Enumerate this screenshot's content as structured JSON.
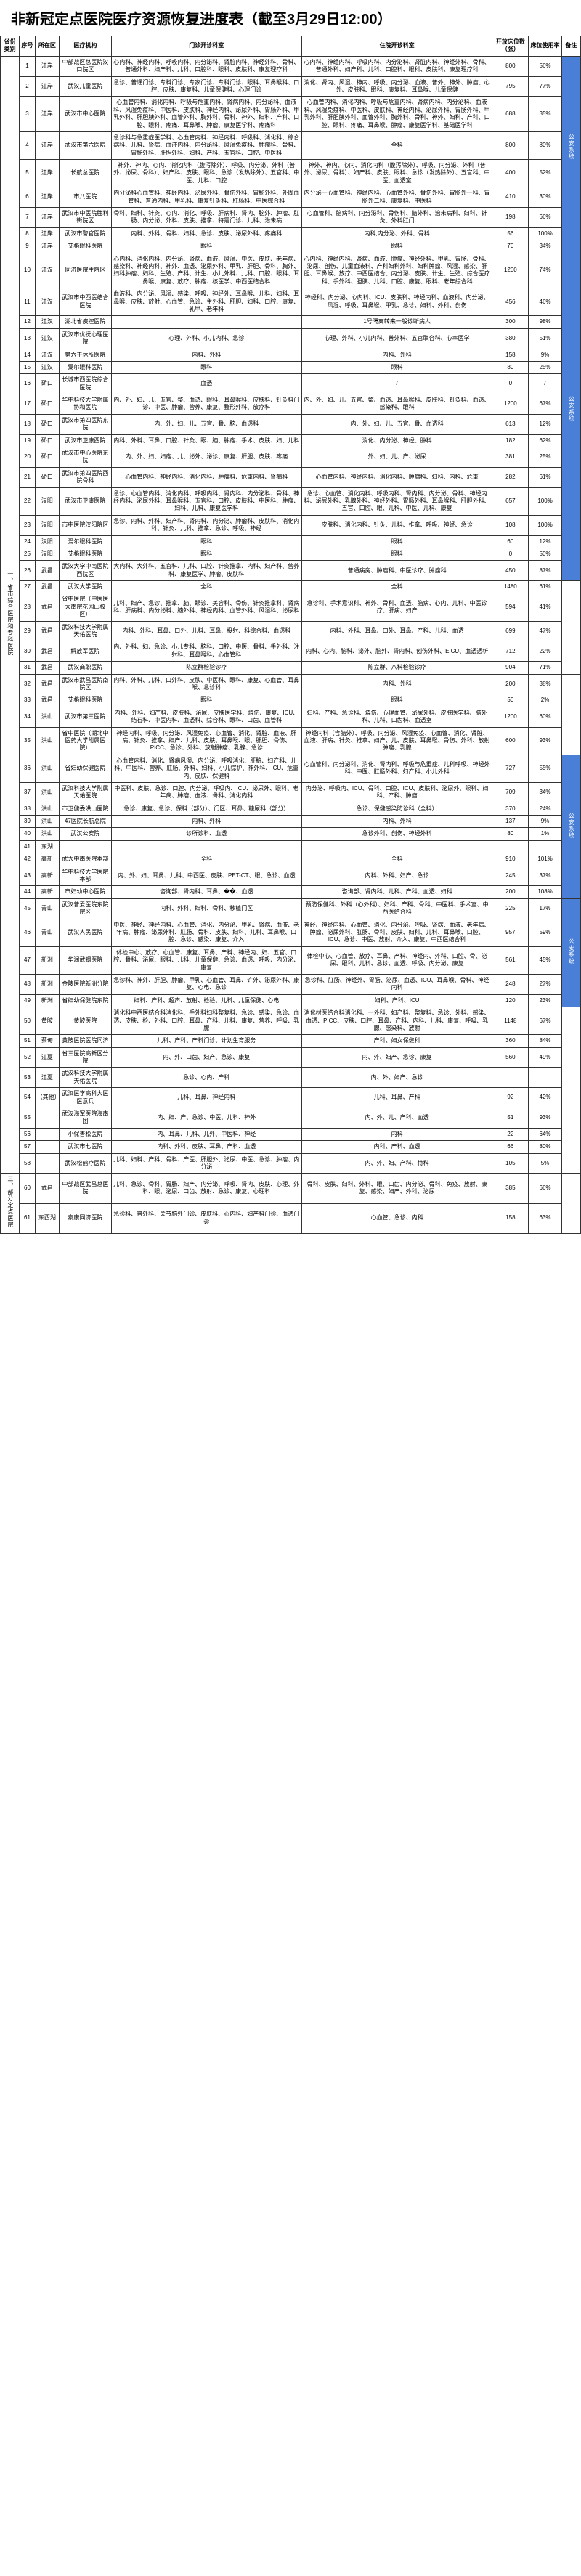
{
  "title": "非新冠定点医院医疗资源恢复进度表（截至3月29日12:00）",
  "headers": [
    "省份类别",
    "序号",
    "所在区",
    "医疗机构",
    "门诊开诊科室",
    "住院开诊科室",
    "开放床位数（张）",
    "床位使用率",
    "备注"
  ],
  "categories": [
    {
      "label": "一、省市综合医院和专科医院",
      "note_groups": [
        {
          "span": 8,
          "label": "公安系统"
        },
        {
          "span": 18,
          "label": "公安系统"
        },
        {
          "span": 5,
          "label": ""
        },
        {
          "span": 1,
          "label": ""
        },
        {
          "span": 3,
          "label": ""
        },
        {
          "span": 9,
          "label": "公安系统"
        },
        {
          "span": 5,
          "label": "公安系统"
        },
        {
          "span": 9,
          "label": ""
        }
      ],
      "rows": [
        {
          "seq": 1,
          "dist": "江岸",
          "hosp": "中部战区总医院汉口院区",
          "d1": "心内科、神经内科、呼吸内科、内分泌科、肾脏内科、神经外科、骨科、普通外科、妇产科、儿科、口腔科、眼科、皮肤科、康复理疗科",
          "d2": "心内科、神经内科、呼吸内科、内分泌科、肾脏内科、神经外科、骨科、普通外科、妇产科、儿科、口腔科、眼科、皮肤科、康复理疗科",
          "beds": "800",
          "rate": "56%"
        },
        {
          "seq": 2,
          "dist": "江岸",
          "hosp": "武汉儿童医院",
          "d1": "急诊、普通门诊、专科门诊、专家门诊、专科门诊、眼科、耳鼻喉科、口腔、皮肤、康复科、儿童保健科、心理门诊",
          "d2": "消化、肾内、风湿、神内、呼吸、内分泌、血液、普外、神外、肿瘤、心外、皮肤科、眼科、康复科、耳鼻喉、儿童保健",
          "beds": "795",
          "rate": "77%"
        },
        {
          "seq": 3,
          "dist": "江岸",
          "hosp": "武汉市中心医院",
          "d1": "心血管内科、消化内科、呼吸与危重内科、肾病内科、内分泌科、血液科、风湿免疫科、中医科、皮肤科、神经内科、泌尿外科、胃肠外科、甲乳外科、肝胆胰外科、血管外科、胸外科、骨科、神外、妇科、产科、口腔、眼科、疼痛、耳鼻喉、肿瘤、康复医学科、疼痛科",
          "d2": "心血管内科、消化内科、呼吸与危重内科、肾病内科、内分泌科、血液科、风湿免疫科、中医科、皮肤科、神经内科、泌尿外科、胃肠外科、甲乳外科、肝胆胰外科、血管外科、胸外科、骨科、神外、妇科、产科、口腔、眼科、疼痛、耳鼻喉、肿瘤、康复医学科、基础医学科",
          "beds": "688",
          "rate": "35%"
        },
        {
          "seq": 4,
          "dist": "江岸",
          "hosp": "武汉市第六医院",
          "d1": "急诊科与急重症医学科、心血管内科、神经内科、呼吸科、消化科、综合病科、儿科、肾病、血液内科、内分泌科、风湿免疫科、肿瘤科、骨科、胃肠外科、肝胆外科、妇科、产科、五官科、口腔、中医科",
          "d2": "全科",
          "beds": "800",
          "rate": "80%"
        },
        {
          "seq": 5,
          "dist": "江岸",
          "hosp": "长航总医院",
          "d1": "神外、神内、心内、消化内科（腹泻除外）、呼吸、内分泌、外科（普外、泌尿、骨科）、妇产科、皮肤、眼科、急诊（发热除外）、五官科、中医、儿科、口腔",
          "d2": "神外、神内、心内、消化内科（腹泻除外）、呼吸、内分泌、外科（普外、泌尿、骨科）、妇产科、皮肤、眼科、急诊（发热除外）、五官科、中医、血透室",
          "beds": "400",
          "rate": "52%"
        },
        {
          "seq": 6,
          "dist": "江岸",
          "hosp": "市八医院",
          "d1": "内分泌科心血管科、神经内科、泌尿外科、骨伤外科、胃肠外科、外周血管科、普通内科、甲乳科、康复针灸科、肛肠科、中医综合科",
          "d2": "内分泌一心血管科、神经内科、心血管外科、骨伤外科、胃肠外一科、胃肠外二科、康复科、中医科",
          "beds": "410",
          "rate": "30%"
        },
        {
          "seq": 7,
          "dist": "江岸",
          "hosp": "武汉市中医院胜利街院区",
          "d1": "骨科、妇科、针灸、心内、消化、呼吸、肝病科、肾内、脑外、肿瘤、肛肠、内分泌、外科、皮肤、推拿、特需门诊、儿科、治未病",
          "d2": "心血管科、脑病科、内分泌科、骨伤科、脑外科、治未病科、妇科、针灸、外科肛门",
          "beds": "198",
          "rate": "66%"
        },
        {
          "seq": 8,
          "dist": "江岸",
          "hosp": "武汉市警官医院",
          "d1": "内科、外科、骨科、妇科、急诊、皮肤、泌尿外科、疼痛科",
          "d2": "内科,内分泌、外科、骨科",
          "beds": "56",
          "rate": "100%"
        },
        {
          "seq": 9,
          "dist": "江岸",
          "hosp": "艾格眼科医院",
          "d1": "眼科",
          "d2": "眼科",
          "beds": "70",
          "rate": "34%"
        },
        {
          "seq": 10,
          "dist": "江汉",
          "hosp": "同济医院主院区",
          "d1": "心内科、消化内科、内分泌、肾病、血液、风湿、中医、皮肤、老年病、感染科、神经内科、神外、血透、泌尿外科、甲乳、肝胆、骨科、胸外、妇科肿瘤、妇科、生殖、产科、计生、小儿外科、儿科、口腔、眼科、耳鼻喉、康复、放疗、肿瘤、核医学、中西医结合科",
          "d2": "心内科、神经内科、肾病、血液、肿瘤、神经外科、甲乳、胃肠、骨科、泌尿、创伤、儿童血液科、产科妇科外科、妇科肿瘤、风湿、感染、肝胆、耳鼻喉、放疗、中西医结合、内分泌、皮肤、计生、生殖、综合医疗科、手外科、胆胰、儿科、口腔、康复、眼科、老年综合科",
          "beds": "1200",
          "rate": "74%"
        },
        {
          "seq": 11,
          "dist": "江汉",
          "hosp": "武汉市中西医结合医院",
          "d1": "血液科、内分泌、风湿、感染、呼吸、神经外、耳鼻喉、儿科、妇科、耳鼻喉、皮肤、放射、心血管、急诊、主外科、肝胆、妇科、口腔、康复、乳甲、老年科",
          "d2": "神经科、内分泌、心内科、ICU、皮肤科、神经内科、血液科、内分泌、风湿、呼吸、耳鼻喉、甲乳、急诊、妇科、外科、创伤",
          "beds": "456",
          "rate": "46%"
        },
        {
          "seq": 12,
          "dist": "江汉",
          "hosp": "湖北省疾控医院",
          "d1": "",
          "d2": "1号隔离转来一般诊断病人",
          "beds": "300",
          "rate": "98%"
        },
        {
          "seq": 13,
          "dist": "江汉",
          "hosp": "武汉市优抚心理医院",
          "d1": "心理、外科、小儿内科、急诊",
          "d2": "心理、外科、小儿内科、普外科、五官联合科、心率医学",
          "beds": "380",
          "rate": "51%"
        },
        {
          "seq": 14,
          "dist": "江汉",
          "hosp": "第六干休所医院",
          "d1": "内科、外科",
          "d2": "内科、外科",
          "beds": "158",
          "rate": "9%"
        },
        {
          "seq": 15,
          "dist": "江汉",
          "hosp": "爱尔眼科医院",
          "d1": "眼科",
          "d2": "眼科",
          "beds": "80",
          "rate": "25%"
        },
        {
          "seq": 16,
          "dist": "硚口",
          "hosp": "长城市西医院综合医院",
          "d1": "血透",
          "d2": "/",
          "beds": "0",
          "rate": "/"
        },
        {
          "seq": 17,
          "dist": "硚口",
          "hosp": "华中科技大学附属协和医院",
          "d1": "内、外、妇、儿、五官、整、血透、眼科、耳鼻喉科、皮肤科、针灸科门诊、中医、肿瘤、营养、康复、整形外科、放疗科",
          "d2": "内、外、妇、儿、五官、整、血透、耳鼻喉科、皮肤科、针灸科、血透、感染科、眼科",
          "beds": "1200",
          "rate": "67%"
        },
        {
          "seq": 18,
          "dist": "硚口",
          "hosp": "武汉市第四医院东院",
          "d1": "内、外、妇、儿、五官、骨、脑、血透科",
          "d2": "内、外、妇、儿、五官、骨、血透科",
          "beds": "613",
          "rate": "12%"
        },
        {
          "seq": 19,
          "dist": "硚口",
          "hosp": "武汉市卫康西院",
          "d1": "内科、外科、耳鼻、口腔、针灸、眼、脑、肿瘤、手术、皮肤、妇、儿科",
          "d2": "消化、内分泌、神经、肿科",
          "beds": "182",
          "rate": "62%"
        },
        {
          "seq": 20,
          "dist": "硚口",
          "hosp": "武汉市中心医院东院",
          "d1": "内、外、妇、妇瘤、儿、泌外、泌诊、康复、肝胆、皮肤、疼痛",
          "d2": "外、妇、儿、产、泌尿",
          "beds": "381",
          "rate": "25%"
        },
        {
          "seq": 21,
          "dist": "硚口",
          "hosp": "武汉市第四医院西院骨科",
          "d1": "心血管内科、神经内科、消化内科、肿瘤科、危重内科、肾病科",
          "d2": "心血管内科、神经内科、消化内科、肿瘤科、妇科、内科、危重",
          "beds": "282",
          "rate": "61%"
        },
        {
          "seq": 22,
          "dist": "汉阳",
          "hosp": "武汉市卫康医院",
          "d1": "急诊、心血管内科、消化内科、呼吸内科、肾内科、内分泌科、骨科、神经内科、泌尿外科、耳鼻喉科、五官科、口腔、皮肤科、中医科、肿瘤、妇科、儿科、康复医学科",
          "d2": "急诊、心血管、消化内科、呼吸内科、肾内科、内分泌、骨科、神经内科、泌尿外科、乳腺外科、神经外科、胃肠外科、耳鼻喉科、肝胆外科、五官、口腔、眼、儿科、中医、儿科、康复",
          "beds": "657",
          "rate": "100%"
        },
        {
          "seq": 23,
          "dist": "汉阳",
          "hosp": "市中医院汉阳院区",
          "d1": "急诊、内科、外科、妇产科、肾内科、内分泌、肿瘤科、皮肤科、消化内科、针灸、儿科、推拿、急诊、呼吸、神经",
          "d2": "皮肤科、消化内科、针灸、儿科、推拿、呼吸、神经、急诊",
          "beds": "108",
          "rate": "100%"
        },
        {
          "seq": 24,
          "dist": "汉阳",
          "hosp": "爱尔眼科医院",
          "d1": "眼科",
          "d2": "眼科",
          "beds": "60",
          "rate": "12%"
        },
        {
          "seq": 25,
          "dist": "汉阳",
          "hosp": "艾格眼科医院",
          "d1": "眼科",
          "d2": "眼科",
          "beds": "0",
          "rate": "50%"
        },
        {
          "seq": 26,
          "dist": "武昌",
          "hosp": "武汉大学中南医院西院区",
          "d1": "大内科、大外科、五官科、儿科、口腔、针灸推拿、内科、妇产科、营养科、康复医学、肿瘤、皮肤科",
          "d2": "普通病房、肿瘤科、中医诊疗、肿瘤科",
          "beds": "450",
          "rate": "87%"
        },
        {
          "seq": 27,
          "dist": "武昌",
          "hosp": "武汉大学医院",
          "d1": "全科",
          "d2": "全科",
          "beds": "1480",
          "rate": "61%"
        },
        {
          "seq": 28,
          "dist": "武昌",
          "hosp": "省中医院（中医医大南院花园山校区）",
          "d1": "儿科、妇产、急诊、推拿、脑、眼诊、美容科、骨伤、针灸推拿科、肾病科、肝病科、内分泌科、脑外科、神经内科、血管外科、风湿科、泌尿科",
          "d2": "急诊科、手术意识科、神外、骨科、血透、脑病、心内、儿科、中医诊疗、肝病、妇产",
          "beds": "594",
          "rate": "41%"
        },
        {
          "seq": 29,
          "dist": "武昌",
          "hosp": "武汉科技大学附属天佑医院",
          "d1": "内科、外科、耳鼻、口外、儿科、耳鼻、投射、科综合科、血透科",
          "d2": "内科、外科、耳鼻、口外、耳鼻、产科、儿科、血透",
          "beds": "699",
          "rate": "47%"
        },
        {
          "seq": 30,
          "dist": "武昌",
          "hosp": "解放军医院",
          "d1": "内、外科、妇、急诊、小儿专科、脑科、口腔、中医、骨科、手外科、注射科、耳鼻喉科、心血管科",
          "d2": "内科、心内、脑科、泌外、脑外、肾内科、创伤外科、EICU、血透透析",
          "beds": "712",
          "rate": "22%"
        },
        {
          "seq": 31,
          "dist": "武昌",
          "hosp": "武汉商职医院",
          "d1": "陈立群检验诊疗",
          "d2": "陈立群、八科检验诊疗",
          "beds": "904",
          "rate": "71%"
        },
        {
          "seq": 32,
          "dist": "武昌",
          "hosp": "武汉市武昌医院南院区",
          "d1": "内科、外科、儿科、口外科、皮肤、中医科、眼科、康复、心血管、耳鼻喉、急诊科",
          "d2": "内科、外科",
          "beds": "200",
          "rate": "38%"
        },
        {
          "seq": 33,
          "dist": "武昌",
          "hosp": "艾格眼科医院",
          "d1": "眼科",
          "d2": "眼科",
          "beds": "50",
          "rate": "2%"
        },
        {
          "seq": 34,
          "dist": "洪山",
          "hosp": "武汉市第三医院",
          "d1": "内科、外科、妇产科、皮肤科、泌尿、皮肤医学科、烧伤、康复、ICU、结石科、中医内科、血透科、综合科、眼科、口齿、血管科",
          "d2": "妇科、产科、急诊科、烧伤、心理血管、泌尿外科、皮肤医学科、脑外科、儿科、口齿科、血透室",
          "beds": "1200",
          "rate": "60%"
        },
        {
          "seq": 35,
          "dist": "洪山",
          "hosp": "省中医院（湖北中医药大学附属医院）",
          "d1": "神经内科、呼吸、内分泌、风湿免疫、心血管、消化、肾脏、血液、肝病、针灸、推拿、妇产、儿科、皮肤、耳鼻喉、眼、肝胆、骨伤、PICC、急诊、外科、放射肿瘤、乳腺、急诊",
          "d2": "神经内科（含脑外）、呼吸、内分泌、风湿免疫、心血管、消化、肾脏、血液、肝病、针灸、推拿、妇产、儿、皮肤、耳鼻喉、骨伤、外科、放射肿瘤、乳腺",
          "beds": "600",
          "rate": "93%"
        },
        {
          "seq": 36,
          "dist": "洪山",
          "hosp": "省妇幼保健医院",
          "d1": "心血管内科、消化、肾病风湿、内分泌、呼吸消化、肝脏、妇产科、儿科、中医科、营养、肛肠、外科、妇科、小儿综护、神外科、ICU、危重内、皮肤、保健科",
          "d2": "心血管科、内分泌科、消化、肾内科、呼吸与危重症、儿科呼吸、神经外科、中医、肛肠外科、妇产科、小儿外科",
          "beds": "727",
          "rate": "55%"
        },
        {
          "seq": 37,
          "dist": "洪山",
          "hosp": "武汉科技大学附属天佑医院",
          "d1": "中医科、皮肤、急诊、口腔、内分泌、呼吸内、ICU、泌尿外、眼科、老年病、肿瘤、血液、骨科、消化内科",
          "d2": "内分泌、呼吸内、ICU、骨科、口腔、ICU、皮肤科、泌尿外、眼科、妇科、产科、肿瘤",
          "beds": "709",
          "rate": "34%"
        },
        {
          "seq": 38,
          "dist": "洪山",
          "hosp": "市卫健委洪山医院",
          "d1": "急诊、康复、急诊、保科（部分）、门区、耳鼻、糖尿科（部分）",
          "d2": "急诊、保健感染防诊科（全科）",
          "beds": "370",
          "rate": "24%"
        },
        {
          "seq": 39,
          "dist": "洪山",
          "hosp": "47医院长航总院",
          "d1": "内科、外科",
          "d2": "内科、外科",
          "beds": "137",
          "rate": "9%"
        },
        {
          "seq": 40,
          "dist": "洪山",
          "hosp": "武汉公安院",
          "d1": "诊所诊科、血透",
          "d2": "急诊外科、创伤、神经外科",
          "beds": "80",
          "rate": "1%"
        },
        {
          "seq": 41,
          "dist": "东湖",
          "hosp": "",
          "d1": "",
          "d2": "",
          "beds": "",
          "rate": ""
        },
        {
          "seq": 42,
          "dist": "高新",
          "hosp": "武大中南医院本部",
          "d1": "全科",
          "d2": "全科",
          "beds": "910",
          "rate": "101%"
        },
        {
          "seq": 43,
          "dist": "高新",
          "hosp": "华中科技大学医院本部",
          "d1": "内、外、妇、耳鼻、儿科、中西医、皮肤、PET-CT、眼、急诊、血透",
          "d2": "内科、外科、妇产、急诊",
          "beds": "245",
          "rate": "37%"
        },
        {
          "seq": 44,
          "dist": "高新",
          "hosp": "市妇幼中心医院",
          "d1": "咨询部、肾内科、耳鼻、��、血透",
          "d2": "咨询部、肾内科、儿科、产科、血透、妇科",
          "beds": "200",
          "rate": "108%"
        },
        {
          "seq": 45,
          "dist": "青山",
          "hosp": "武汉普爱医院东院院区",
          "d1": "内科、外科、妇科、骨科、移植门区",
          "d2": "预防保健科、外科（心外科）、妇科、产科、骨科、中医科、手术室、中西医结合科",
          "beds": "225",
          "rate": "17%"
        },
        {
          "seq": 46,
          "dist": "青山",
          "hosp": "武汉人民医院",
          "d1": "中医、神经、神经内科、心血管、消化、内分泌、甲乳、肾病、血液、老年病、肿瘤、泌尿外科、肛肠、骨科、皮肤、妇科、儿科、耳鼻喉、口腔、急诊、感染、康复、介入",
          "d2": "神经、神经内科、心血管、消化、内分泌、呼吸、肾病、血液、老年病、肿瘤、泌尿外科、肛肠、骨科、皮肤、妇科、儿科、耳鼻喉、口腔、ICU、急诊、中医、放射、介入、康复、中西医结合科",
          "beds": "957",
          "rate": "59%"
        },
        {
          "seq": 47,
          "dist": "新洲",
          "hosp": "华润武钢医院",
          "d1": "体检中心、放疗、心血管、康复、耳鼻、产科、神经内、妇、五官、口腔、骨科、泌尿、眼科、儿科、儿童保健、急诊、血透、呼吸、内分泌、康复",
          "d2": "体检中心、心血管、放疗、耳鼻、产科、神经内、外科、口腔、骨、泌尿、眼科、儿科、急诊、血透、呼吸、内分泌、康复",
          "beds": "561",
          "rate": "45%"
        },
        {
          "seq": 48,
          "dist": "新洲",
          "hosp": "金陵医院新洲分院",
          "d1": "急诊科、神外、肝胆、肿瘤、甲乳、心血管、耳鼻、许外、泌尿外科、康复、心电、急诊",
          "d2": "急诊科、肛肠、神经外、胃肠、泌尿、血透、ICU、耳鼻喉、骨科、神经内科",
          "beds": "248",
          "rate": "27%"
        },
        {
          "seq": 49,
          "dist": "新洲",
          "hosp": "省妇幼保健院东院",
          "d1": "妇科、产科、超声、放射、检验、儿科、儿童保健、心电",
          "d2": "妇科、产科、ICU",
          "beds": "120",
          "rate": "23%"
        },
        {
          "seq": 50,
          "dist": "黄陂",
          "hosp": "黄陂医院",
          "d1": "消化科中西医结合科消化科、手外科妇科整复科、急诊、感染、急诊、血透、皮肤、检、外科、口腔、耳鼻、产科、儿科、康复、营养、呼吸、乳腺",
          "d2": "消化材医结合科消化科、一外科、妇产科、整复科、急诊、外科、感染、血透、PICC、皮肤、口腔、耳鼻、产科、内科、儿科、康复、呼吸、乳腺、感染科、放射",
          "beds": "1148",
          "rate": "67%"
        },
        {
          "seq": 51,
          "dist": "蔡甸",
          "hosp": "黄陂医院医院同济",
          "d1": "儿科、产科、产科门诊、计划生育服务",
          "d2": "产科、妇女保健科",
          "beds": "360",
          "rate": "84%"
        },
        {
          "seq": 52,
          "dist": "江夏",
          "hosp": "省三医院高新区分院",
          "d1": "内、外、口齿、妇产、急诊、康复",
          "d2": "内、外、妇产、急诊、康复",
          "beds": "560",
          "rate": "49%"
        },
        {
          "seq": 53,
          "dist": "江夏",
          "hosp": "武汉科技大学附属天佑医院",
          "d1": "急诊、心内、产科",
          "d2": "内、外、妇产、急诊",
          "beds": "",
          "rate": ""
        },
        {
          "seq": 54,
          "dist": "（其他）",
          "hosp": "武汉医学高科大医医意兵",
          "d1": "儿科、耳鼻、神经内科",
          "d2": "儿科、耳鼻、产科",
          "beds": "92",
          "rate": "42%"
        },
        {
          "seq": 55,
          "dist": "",
          "hosp": "武汉海军医院海南团",
          "d1": "内、妇、产、急诊、中医、儿科、神外",
          "d2": "内、外、儿、产科、血透",
          "beds": "51",
          "rate": "93%"
        },
        {
          "seq": 56,
          "dist": "",
          "hosp": "小保善松医院",
          "d1": "内、耳鼻、儿科、儿外、中医科、神经",
          "d2": "内科",
          "beds": "22",
          "rate": "64%"
        },
        {
          "seq": 57,
          "dist": "",
          "hosp": "武汉市七医院",
          "d1": "内科、外科、皮肤、耳鼻、产科、血透",
          "d2": "内科、产科、血透",
          "beds": "66",
          "rate": "80%"
        },
        {
          "seq": 58,
          "dist": "",
          "hosp": "武汉松鹤疗医院",
          "d1": "儿科、妇科、产科、骨科、产医、肝胆外、泌尿、中医、急诊、肿瘤、内分泌",
          "d2": "内、外、妇、产科、特科",
          "beds": "105",
          "rate": "5%"
        }
      ]
    },
    {
      "label": "三、部分定点医院",
      "rows": [
        {
          "seq": 60,
          "dist": "武昌",
          "hosp": "中部战区武昌总医院",
          "d1": "儿科、急诊、骨科、胃肠、妇产、内分泌、呼吸、肾内、皮肤、心理、外科、眼、泌尿、口齿、放射、急诊、康复、心理科",
          "d2": "骨科、皮肤、妇科、外科、眼、口齿、内分泌、骨科、免疫、放射、康复、感染、妇产、外科、泌尿",
          "beds": "385",
          "rate": "66%"
        },
        {
          "seq": 61,
          "dist": "东西湖",
          "hosp": "泰康同济医院",
          "d1": "急诊科、普外科、关节脑外门诊、皮肤科、心内科、妇产科门诊、血透门诊",
          "d2": "心血管、急诊、内科",
          "beds": "158",
          "rate": "63%"
        }
      ]
    }
  ]
}
